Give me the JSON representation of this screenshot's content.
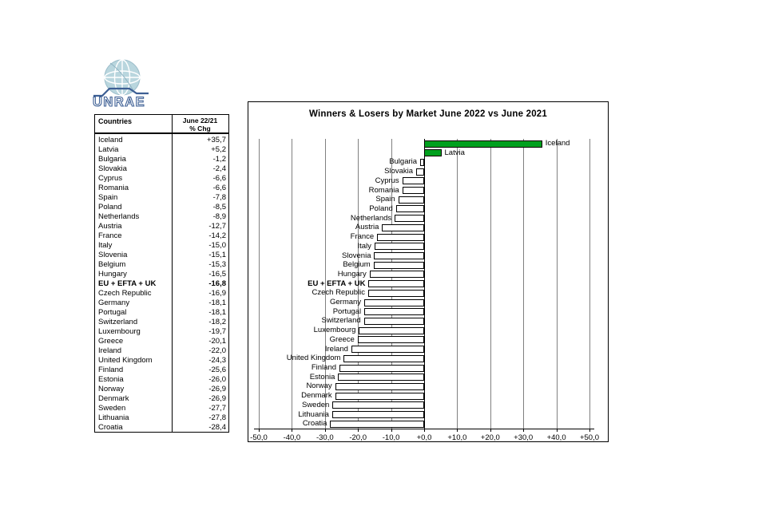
{
  "logo": {
    "text": "UNRAE"
  },
  "table": {
    "col1_header": "Countries",
    "col2_header_line1": "June 22/21",
    "col2_header_line2": "% Chg"
  },
  "chart_data": {
    "type": "bar",
    "orientation": "horizontal",
    "title": "Winners & Losers by Market June 2022 vs June 2021",
    "xlabel": "",
    "ylabel": "",
    "xlim": [
      -50,
      50
    ],
    "grid": true,
    "x_tick_values": [
      -50,
      -40,
      -30,
      -20,
      -10,
      0,
      10,
      20,
      30,
      40,
      50
    ],
    "x_tick_labels": [
      "-50,0",
      "-40,0",
      "-30,0",
      "-20,0",
      "-10,0",
      "+0,0",
      "+10,0",
      "+20,0",
      "+30,0",
      "+40,0",
      "+50,0"
    ],
    "categories": [
      "Iceland",
      "Latvia",
      "Bulgaria",
      "Slovakia",
      "Cyprus",
      "Romania",
      "Spain",
      "Poland",
      "Netherlands",
      "Austria",
      "France",
      "Italy",
      "Slovenia",
      "Belgium",
      "Hungary",
      "EU + EFTA + UK",
      "Czech Republic",
      "Germany",
      "Portugal",
      "Switzerland",
      "Luxembourg",
      "Greece",
      "Ireland",
      "United Kingdom",
      "Finland",
      "Estonia",
      "Norway",
      "Denmark",
      "Sweden",
      "Lithuania",
      "Croatia"
    ],
    "values": [
      35.7,
      5.2,
      -1.2,
      -2.4,
      -6.6,
      -6.6,
      -7.8,
      -8.5,
      -8.9,
      -12.7,
      -14.2,
      -15.0,
      -15.1,
      -15.3,
      -16.5,
      -16.8,
      -16.9,
      -18.1,
      -18.1,
      -18.2,
      -19.7,
      -20.1,
      -22.0,
      -24.3,
      -25.6,
      -26.0,
      -26.9,
      -26.9,
      -27.7,
      -27.8,
      -28.4
    ],
    "value_labels": [
      "+35,7",
      "+5,2",
      "-1,2",
      "-2,4",
      "-6,6",
      "-6,6",
      "-7,8",
      "-8,5",
      "-8,9",
      "-12,7",
      "-14,2",
      "-15,0",
      "-15,1",
      "-15,3",
      "-16,5",
      "-16,8",
      "-16,9",
      "-18,1",
      "-18,1",
      "-18,2",
      "-19,7",
      "-20,1",
      "-22,0",
      "-24,3",
      "-25,6",
      "-26,0",
      "-26,9",
      "-26,9",
      "-27,7",
      "-27,8",
      "-28,4"
    ],
    "bold_categories": [
      "EU + EFTA + UK"
    ],
    "colors": {
      "positive_bar": "#00A01E",
      "negative_bar": "#FFFFFF",
      "bar_border": "#000000",
      "gridline": "#808080",
      "zero_axis": "#000000"
    }
  }
}
